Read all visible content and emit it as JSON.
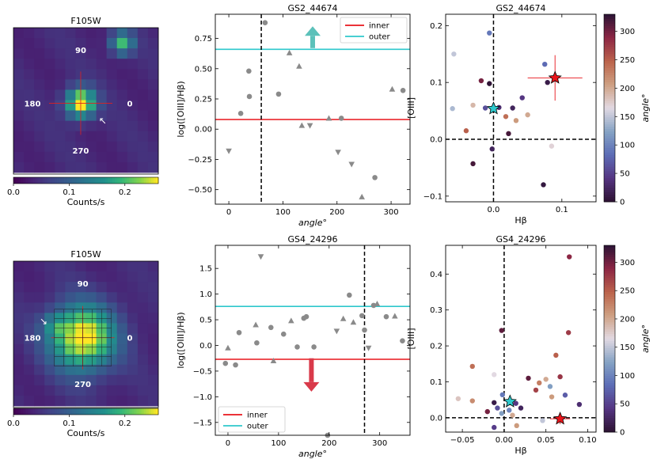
{
  "colors": {
    "inner": "#e8151b",
    "outer": "#2ec8cc",
    "gray": "#8a8a8a",
    "up_arrow": "#5cc1ba",
    "down_arrow": "#d93a4a"
  },
  "chart_data": [
    {
      "type": "heatmap",
      "title": "F105W",
      "image_size": [
        14,
        14
      ],
      "center": [
        6.5,
        7.3
      ],
      "sigma": 1.0,
      "peak": 0.24,
      "background": 0.03,
      "blob": {
        "x": 10.5,
        "y": 1.5,
        "value": 0.16
      },
      "angle_labels": [
        "90",
        "180",
        "0",
        "270"
      ],
      "arrow": "↖",
      "colorbar": {
        "label": "Counts/s",
        "ticks": [
          "0.0",
          "0.1",
          "0.2"
        ],
        "range": [
          0,
          0.26
        ]
      }
    },
    {
      "type": "scatter",
      "title": "GS2_44674",
      "xlabel": "angle°",
      "ylabel": "log([OIII]/Hβ)",
      "xlim": [
        -25,
        335
      ],
      "ylim": [
        -0.62,
        0.95
      ],
      "xticks": [
        0,
        100,
        200,
        300
      ],
      "yticks": [
        -0.5,
        -0.25,
        0.0,
        0.25,
        0.5,
        0.75
      ],
      "ytick_labels": [
        "−0.50",
        "−0.25",
        "0.00",
        "0.25",
        "0.50",
        "0.75"
      ],
      "inner": 0.08,
      "outer": 0.66,
      "vline": 60,
      "arrow": {
        "x": 155,
        "from": 0.67,
        "to": 0.85,
        "direction": "up"
      },
      "legend": {
        "inner": "inner",
        "outer": "outer",
        "position": "top-right"
      },
      "points": [
        {
          "x": 0,
          "y": -0.18,
          "m": "v"
        },
        {
          "x": 22,
          "y": 0.13,
          "m": "o"
        },
        {
          "x": 37,
          "y": 0.48,
          "m": "o"
        },
        {
          "x": 38,
          "y": 0.27,
          "m": "o"
        },
        {
          "x": 67,
          "y": 0.88,
          "m": "o"
        },
        {
          "x": 92,
          "y": 0.29,
          "m": "o"
        },
        {
          "x": 112,
          "y": 0.63,
          "m": "^"
        },
        {
          "x": 130,
          "y": 0.52,
          "m": "^"
        },
        {
          "x": 135,
          "y": 0.03,
          "m": "^"
        },
        {
          "x": 150,
          "y": 0.03,
          "m": "v"
        },
        {
          "x": 185,
          "y": 0.09,
          "m": "^"
        },
        {
          "x": 208,
          "y": 0.09,
          "m": "o"
        },
        {
          "x": 202,
          "y": -0.19,
          "m": "v"
        },
        {
          "x": 227,
          "y": -0.29,
          "m": "v"
        },
        {
          "x": 246,
          "y": -0.56,
          "m": "^"
        },
        {
          "x": 270,
          "y": -0.4,
          "m": "o"
        },
        {
          "x": 302,
          "y": 0.33,
          "m": "^"
        },
        {
          "x": 322,
          "y": 0.32,
          "m": "o"
        }
      ]
    },
    {
      "type": "scatter",
      "title": "GS2_44674",
      "xlabel": "Hβ",
      "ylabel": "[OIII]",
      "xlim": [
        -0.07,
        0.15
      ],
      "ylim": [
        -0.11,
        0.22
      ],
      "xticks": [
        0.0,
        0.1
      ],
      "xtick_labels": [
        "0.0",
        "0.1"
      ],
      "yticks": [
        -0.1,
        0.0,
        0.1,
        0.2
      ],
      "ytick_labels": [
        "−0.1",
        "0.0",
        "0.1",
        "0.2"
      ],
      "star_cyan": {
        "x": 0.0,
        "y": 0.054
      },
      "star_red": {
        "x": 0.09,
        "y": 0.108,
        "xerr": 0.04,
        "yerr": 0.04
      },
      "colorbar": {
        "label": "angle°",
        "ticks": [
          0,
          50,
          100,
          150,
          200,
          250,
          300
        ],
        "range": [
          0,
          330
        ]
      },
      "points": [
        {
          "x": -0.006,
          "y": 0.187,
          "a": 90
        },
        {
          "x": -0.058,
          "y": 0.15,
          "a": 150
        },
        {
          "x": 0.075,
          "y": 0.132,
          "a": 80
        },
        {
          "x": -0.018,
          "y": 0.103,
          "a": 300
        },
        {
          "x": -0.006,
          "y": 0.098,
          "a": 330
        },
        {
          "x": 0.079,
          "y": 0.1,
          "a": 10
        },
        {
          "x": -0.03,
          "y": 0.06,
          "a": 190
        },
        {
          "x": -0.06,
          "y": 0.054,
          "a": 140
        },
        {
          "x": -0.012,
          "y": 0.055,
          "a": 60
        },
        {
          "x": 0.008,
          "y": 0.056,
          "a": 30
        },
        {
          "x": 0.042,
          "y": 0.073,
          "a": 40
        },
        {
          "x": 0.028,
          "y": 0.055,
          "a": 20
        },
        {
          "x": 0.018,
          "y": 0.04,
          "a": 240
        },
        {
          "x": 0.05,
          "y": 0.043,
          "a": 200
        },
        {
          "x": 0.033,
          "y": 0.033,
          "a": 210
        },
        {
          "x": -0.04,
          "y": 0.015,
          "a": 250
        },
        {
          "x": 0.022,
          "y": 0.01,
          "a": 320
        },
        {
          "x": 0.085,
          "y": -0.012,
          "a": 170
        },
        {
          "x": -0.002,
          "y": -0.017,
          "a": 20
        },
        {
          "x": -0.03,
          "y": -0.043,
          "a": 320
        },
        {
          "x": 0.073,
          "y": -0.08,
          "a": 5
        }
      ]
    },
    {
      "type": "heatmap",
      "title": "F105W",
      "image_size": [
        14,
        14
      ],
      "center": [
        6.7,
        7.4
      ],
      "sigma": 2.2,
      "peak": 0.24,
      "background": 0.03,
      "blob": {
        "x": 4.0,
        "y": 6.2,
        "value": 0.06
      },
      "angle_labels": [
        "90",
        "180",
        "0",
        "270"
      ],
      "arrow": "↘",
      "colorbar": {
        "label": "Counts/s",
        "ticks": [
          "0.0",
          "0.1",
          "0.2"
        ],
        "range": [
          0,
          0.26
        ]
      }
    },
    {
      "type": "scatter",
      "title": "GS4_24296",
      "xlabel": "angle°",
      "ylabel": "log([OIII]/Hβ)",
      "xlim": [
        -25,
        360
      ],
      "ylim": [
        -1.75,
        1.95
      ],
      "xticks": [
        0,
        100,
        200,
        300
      ],
      "yticks": [
        -1.5,
        -1.0,
        -0.5,
        0.0,
        0.5,
        1.0,
        1.5
      ],
      "ytick_labels": [
        "−1.5",
        "−1.0",
        "−0.5",
        "0.0",
        "0.5",
        "1.0",
        "1.5"
      ],
      "inner": -0.27,
      "outer": 0.76,
      "vline": 270,
      "arrow": {
        "x": 165,
        "from": -0.25,
        "to": -0.9,
        "direction": "down"
      },
      "legend": {
        "inner": "inner",
        "outer": "outer",
        "position": "bottom-left"
      },
      "points": [
        {
          "x": -5,
          "y": -0.35,
          "m": "o"
        },
        {
          "x": 0,
          "y": -0.05,
          "m": "^"
        },
        {
          "x": 15,
          "y": -0.38,
          "m": "o"
        },
        {
          "x": 22,
          "y": 0.25,
          "m": "o"
        },
        {
          "x": 55,
          "y": 0.4,
          "m": "^"
        },
        {
          "x": 57,
          "y": 0.05,
          "m": "o"
        },
        {
          "x": 65,
          "y": 1.73,
          "m": "v"
        },
        {
          "x": 85,
          "y": 0.35,
          "m": "o"
        },
        {
          "x": 90,
          "y": -0.3,
          "m": "^"
        },
        {
          "x": 110,
          "y": 0.22,
          "m": "o"
        },
        {
          "x": 125,
          "y": 0.48,
          "m": "^"
        },
        {
          "x": 137,
          "y": -0.03,
          "m": "o"
        },
        {
          "x": 150,
          "y": 0.53,
          "m": "o"
        },
        {
          "x": 155,
          "y": 0.56,
          "m": "o"
        },
        {
          "x": 170,
          "y": -0.03,
          "m": "o"
        },
        {
          "x": 197,
          "y": -1.75,
          "m": "o"
        },
        {
          "x": 215,
          "y": 0.28,
          "m": "v"
        },
        {
          "x": 228,
          "y": 0.52,
          "m": "^"
        },
        {
          "x": 240,
          "y": 0.98,
          "m": "o"
        },
        {
          "x": 248,
          "y": 0.45,
          "m": "^"
        },
        {
          "x": 265,
          "y": 0.58,
          "m": "o"
        },
        {
          "x": 270,
          "y": 0.3,
          "m": "o"
        },
        {
          "x": 278,
          "y": -0.05,
          "m": "v"
        },
        {
          "x": 288,
          "y": 0.78,
          "m": "o"
        },
        {
          "x": 295,
          "y": 0.81,
          "m": "^"
        },
        {
          "x": 313,
          "y": 0.56,
          "m": "o"
        },
        {
          "x": 330,
          "y": 0.57,
          "m": "^"
        },
        {
          "x": 345,
          "y": 0.09,
          "m": "o"
        }
      ]
    },
    {
      "type": "scatter",
      "title": "GS4_24296",
      "xlabel": "Hβ",
      "ylabel": "[OIII]",
      "xlim": [
        -0.07,
        0.11
      ],
      "ylim": [
        -0.04,
        0.48
      ],
      "xticks": [
        -0.05,
        0.0,
        0.05,
        0.1
      ],
      "xtick_labels": [
        "−0.05",
        "0.00",
        "0.05",
        "0.10"
      ],
      "yticks": [
        0.0,
        0.1,
        0.2,
        0.3,
        0.4
      ],
      "ytick_labels": [
        "0.0",
        "0.1",
        "0.2",
        "0.3",
        "0.4"
      ],
      "star_cyan": {
        "x": 0.007,
        "y": 0.045
      },
      "star_red": {
        "x": 0.067,
        "y": -0.003,
        "xerr": 0.012,
        "yerr": 0.015
      },
      "colorbar": {
        "label": "angle°",
        "ticks": [
          0,
          50,
          100,
          150,
          200,
          250,
          300
        ],
        "range": [
          0,
          330
        ]
      },
      "points": [
        {
          "x": 0.078,
          "y": 0.448,
          "a": 290
        },
        {
          "x": -0.003,
          "y": 0.243,
          "a": 310
        },
        {
          "x": 0.077,
          "y": 0.237,
          "a": 275
        },
        {
          "x": 0.062,
          "y": 0.174,
          "a": 250
        },
        {
          "x": -0.038,
          "y": 0.143,
          "a": 240
        },
        {
          "x": -0.012,
          "y": 0.12,
          "a": 165
        },
        {
          "x": 0.067,
          "y": 0.114,
          "a": 280
        },
        {
          "x": 0.029,
          "y": 0.11,
          "a": 310
        },
        {
          "x": 0.05,
          "y": 0.107,
          "a": 200
        },
        {
          "x": 0.042,
          "y": 0.097,
          "a": 230
        },
        {
          "x": 0.055,
          "y": 0.087,
          "a": 120
        },
        {
          "x": 0.038,
          "y": 0.077,
          "a": 270
        },
        {
          "x": -0.002,
          "y": 0.064,
          "a": 90
        },
        {
          "x": 0.073,
          "y": 0.063,
          "a": 70
        },
        {
          "x": 0.057,
          "y": 0.058,
          "a": 210
        },
        {
          "x": -0.055,
          "y": 0.053,
          "a": 180
        },
        {
          "x": -0.038,
          "y": 0.047,
          "a": 220
        },
        {
          "x": -0.012,
          "y": 0.042,
          "a": 10
        },
        {
          "x": 0.014,
          "y": 0.04,
          "a": 40
        },
        {
          "x": 0.09,
          "y": 0.037,
          "a": 30
        },
        {
          "x": -0.008,
          "y": 0.027,
          "a": 60
        },
        {
          "x": 0.02,
          "y": 0.027,
          "a": 20
        },
        {
          "x": 0.006,
          "y": 0.021,
          "a": 100
        },
        {
          "x": -0.02,
          "y": 0.017,
          "a": 300
        },
        {
          "x": -0.003,
          "y": 0.012,
          "a": 120
        },
        {
          "x": 0.01,
          "y": 0.007,
          "a": 200
        },
        {
          "x": -0.012,
          "y": -0.027,
          "a": 45
        },
        {
          "x": 0.015,
          "y": -0.022,
          "a": 210
        },
        {
          "x": 0.046,
          "y": -0.008,
          "a": 150
        }
      ]
    }
  ]
}
